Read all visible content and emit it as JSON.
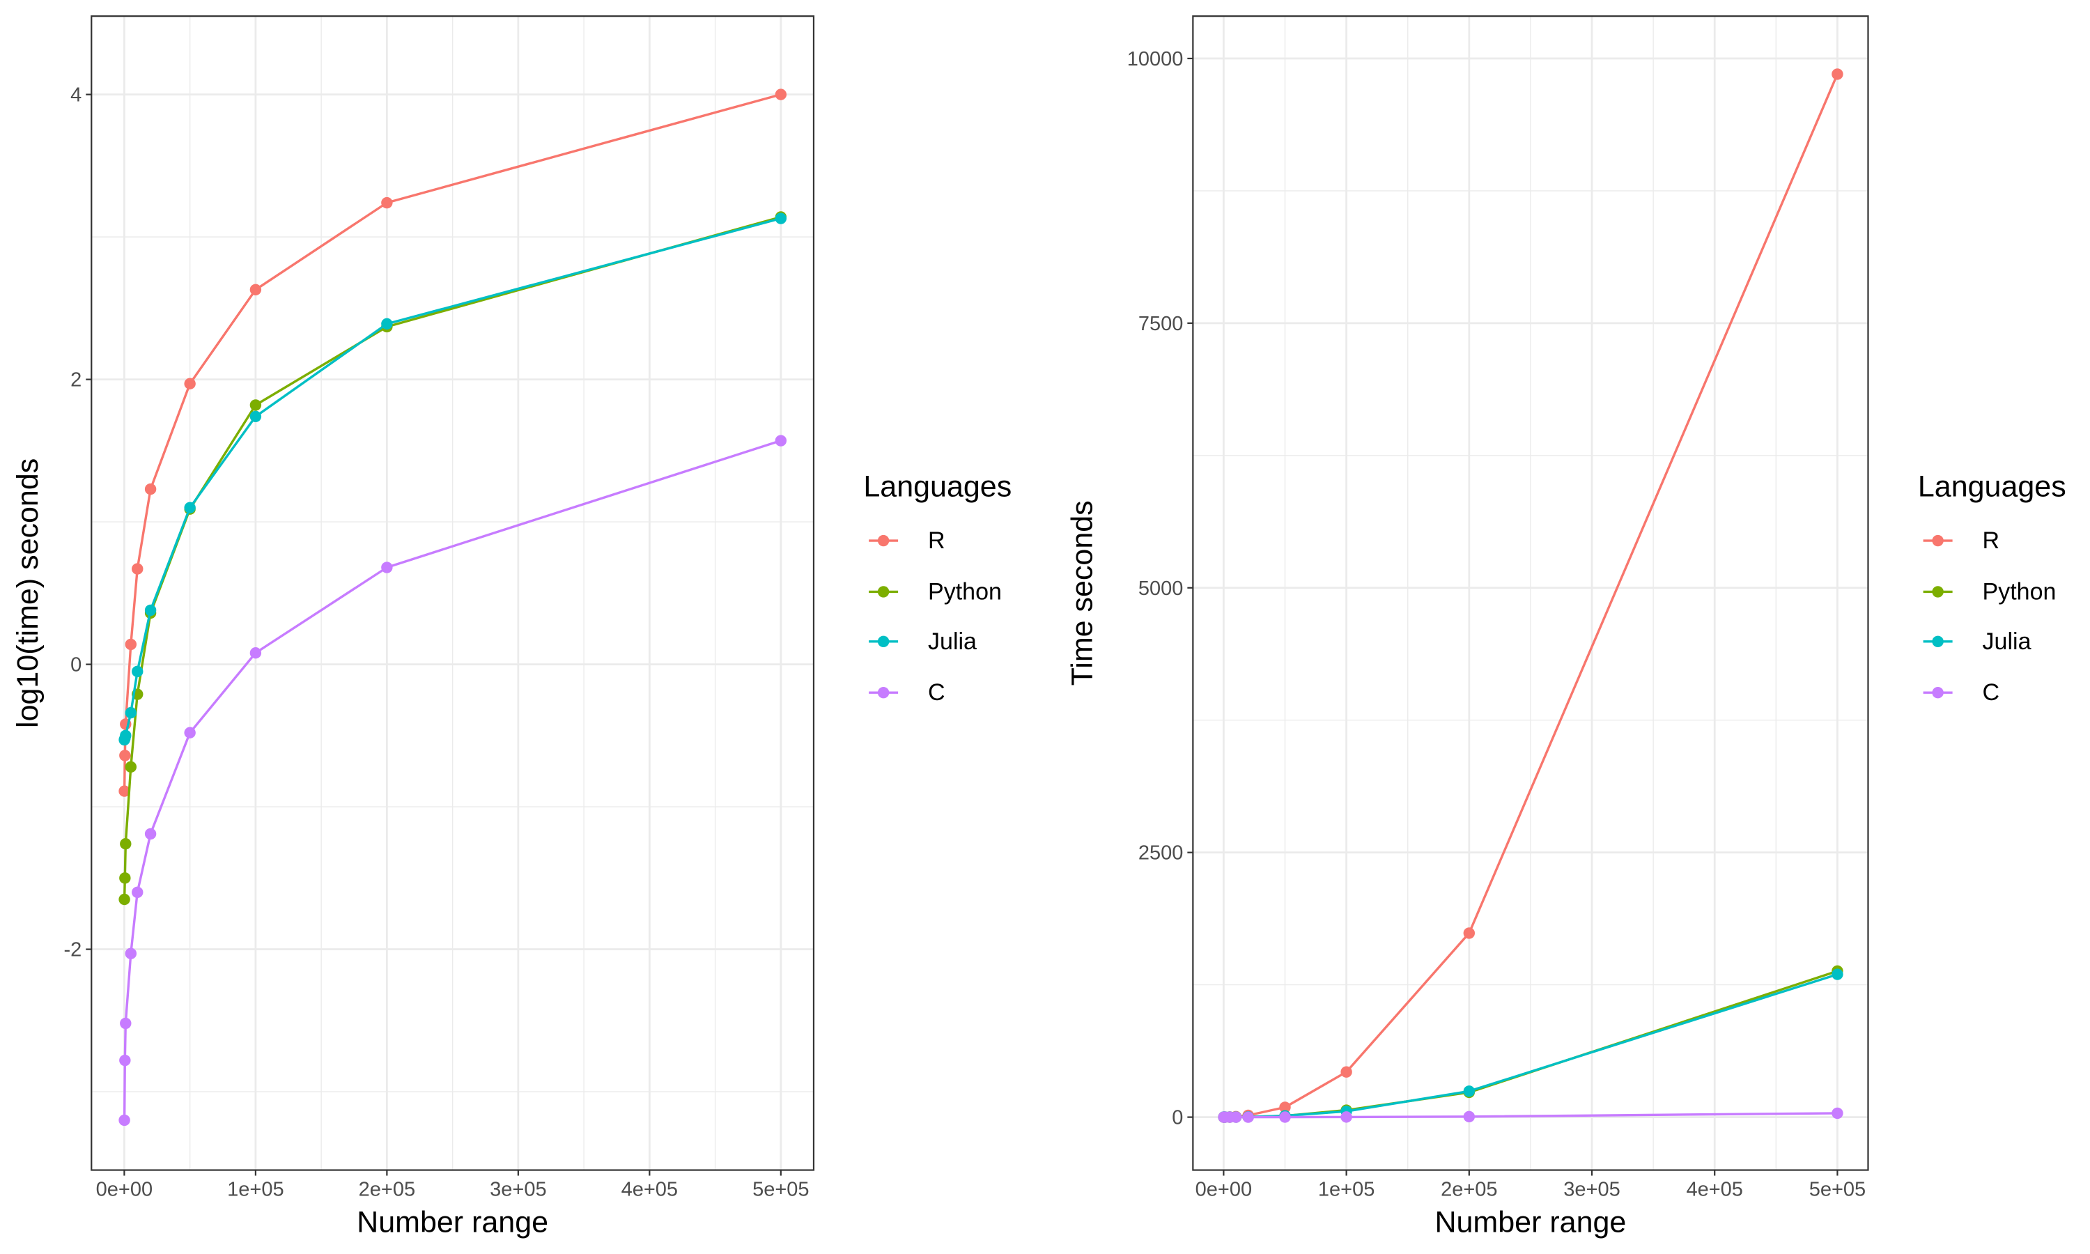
{
  "chart_data": [
    {
      "type": "line",
      "title": "",
      "xlabel": "Number range",
      "ylabel": "log10(time) seconds",
      "xlim": [
        -25000,
        525000
      ],
      "ylim": [
        -3.55,
        4.55
      ],
      "x_ticks": [
        0,
        100000,
        200000,
        300000,
        400000,
        500000
      ],
      "x_tick_labels": [
        "0e+00",
        "1e+05",
        "2e+05",
        "3e+05",
        "4e+05",
        "5e+05"
      ],
      "y_ticks": [
        -2,
        0,
        2,
        4
      ],
      "y_tick_labels": [
        "-2",
        "0",
        "2",
        "4"
      ],
      "grid": true,
      "legend_title": "Languages",
      "legend_position": "right",
      "x": [
        100,
        500,
        1000,
        5000,
        10000,
        20000,
        50000,
        100000,
        200000,
        500000
      ],
      "series": [
        {
          "name": "R",
          "color": "#F8766D",
          "values": [
            -0.89,
            -0.64,
            -0.42,
            0.14,
            0.67,
            1.23,
            1.97,
            2.63,
            3.24,
            4.0
          ]
        },
        {
          "name": "Python",
          "color": "#7CAE00",
          "values": [
            -1.65,
            -1.5,
            -1.26,
            -0.72,
            -0.21,
            0.36,
            1.09,
            1.82,
            2.37,
            3.14
          ]
        },
        {
          "name": "Julia",
          "color": "#00BFC4",
          "values": [
            -0.53,
            -0.52,
            -0.5,
            -0.34,
            -0.05,
            0.38,
            1.1,
            1.74,
            2.39,
            3.13
          ]
        },
        {
          "name": "C",
          "color": "#C77CFF",
          "values": [
            -3.2,
            -2.78,
            -2.52,
            -2.03,
            -1.6,
            -1.19,
            -0.48,
            0.08,
            0.68,
            1.57
          ]
        }
      ]
    },
    {
      "type": "line",
      "title": "",
      "xlabel": "Number range",
      "ylabel": "Time seconds",
      "xlim": [
        -25000,
        525000
      ],
      "ylim": [
        -500,
        10400
      ],
      "x_ticks": [
        0,
        100000,
        200000,
        300000,
        400000,
        500000
      ],
      "x_tick_labels": [
        "0e+00",
        "1e+05",
        "2e+05",
        "3e+05",
        "4e+05",
        "5e+05"
      ],
      "y_ticks": [
        0,
        2500,
        5000,
        7500,
        10000
      ],
      "y_tick_labels": [
        "0",
        "2500",
        "5000",
        "7500",
        "10000"
      ],
      "grid": true,
      "legend_title": "Languages",
      "legend_position": "right",
      "x": [
        100,
        500,
        1000,
        5000,
        10000,
        20000,
        50000,
        100000,
        200000,
        500000
      ],
      "series": [
        {
          "name": "R",
          "color": "#F8766D",
          "values": [
            0.13,
            0.23,
            0.38,
            1.4,
            4.7,
            17,
            93,
            427,
            1738,
            9852
          ]
        },
        {
          "name": "Python",
          "color": "#7CAE00",
          "values": [
            0.02,
            0.03,
            0.06,
            0.19,
            0.62,
            2.3,
            12.3,
            66,
            234,
            1380
          ]
        },
        {
          "name": "Julia",
          "color": "#00BFC4",
          "values": [
            0.3,
            0.3,
            0.32,
            0.46,
            0.89,
            2.4,
            12.6,
            55,
            245,
            1349
          ]
        },
        {
          "name": "C",
          "color": "#C77CFF",
          "values": [
            0.0006,
            0.0017,
            0.003,
            0.009,
            0.025,
            0.065,
            0.33,
            1.2,
            4.8,
            37
          ]
        }
      ]
    }
  ]
}
